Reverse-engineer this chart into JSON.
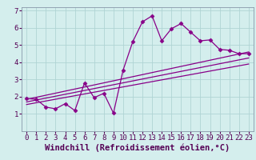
{
  "background_color": "#d4eeed",
  "grid_color": "#b0d4d4",
  "line_color": "#880088",
  "xlabel": "Windchill (Refroidissement éolien,°C)",
  "xlim": [
    -0.5,
    23.5
  ],
  "ylim": [
    0,
    7.2
  ],
  "xticks": [
    0,
    1,
    2,
    3,
    4,
    5,
    6,
    7,
    8,
    9,
    10,
    11,
    12,
    13,
    14,
    15,
    16,
    17,
    18,
    19,
    20,
    21,
    22,
    23
  ],
  "yticks": [
    1,
    2,
    3,
    4,
    5,
    6,
    7
  ],
  "series1_x": [
    0,
    1,
    2,
    3,
    4,
    5,
    6,
    7,
    8,
    9,
    10,
    11,
    12,
    13,
    14,
    15,
    16,
    17,
    18,
    19,
    20,
    21,
    22,
    23
  ],
  "series1_y": [
    1.9,
    1.85,
    1.4,
    1.3,
    1.6,
    1.2,
    2.8,
    1.95,
    2.2,
    1.05,
    3.55,
    5.2,
    6.35,
    6.7,
    5.25,
    5.95,
    6.25,
    5.75,
    5.25,
    5.3,
    4.75,
    4.7,
    4.5,
    4.5
  ],
  "series2_x": [
    0,
    23
  ],
  "series2_y": [
    1.85,
    4.6
  ],
  "series3_x": [
    0,
    23
  ],
  "series3_y": [
    1.7,
    4.25
  ],
  "series4_x": [
    0,
    23
  ],
  "series4_y": [
    1.55,
    3.9
  ],
  "tick_fontsize": 6.5,
  "xlabel_fontsize": 7.5
}
